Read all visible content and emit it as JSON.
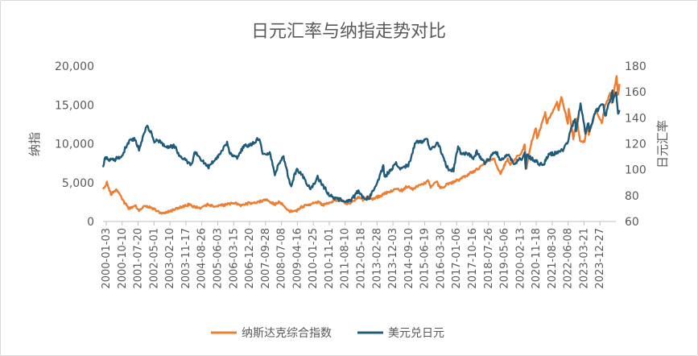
{
  "chart_data": {
    "type": "line",
    "title": "日元汇率与纳指走势对比",
    "ylabel_left": "纳指",
    "ylabel_right": "日元汇率",
    "y_left_ticks": [
      "20,000",
      "15,000",
      "10,000",
      "5,000",
      "0"
    ],
    "y_right_ticks": [
      "180",
      "160",
      "140",
      "120",
      "100",
      "80",
      "60"
    ],
    "y_left_range": [
      0,
      20000
    ],
    "y_right_range": [
      60,
      180
    ],
    "x_range": [
      "2000-01-03",
      "2024-06-28"
    ],
    "x_tick_labels": [
      "2000-01-03",
      "2000-10-10",
      "2001-07-20",
      "2002-05-01",
      "2003-02-10",
      "2003-11-17",
      "2004-08-26",
      "2005-06-03",
      "2006-03-15",
      "2006-12-20",
      "2007-09-28",
      "2008-07-08",
      "2009-04-16",
      "2010-01-25",
      "2010-11-01",
      "2011-08-10",
      "2012-05-18",
      "2013-02-28",
      "2013-12-03",
      "2014-09-10",
      "2015-06-19",
      "2016-03-30",
      "2017-01-06",
      "2017-10-16",
      "2018-07-26",
      "2019-05-06",
      "2020-02-13",
      "2020-11-18",
      "2021-08-30",
      "2022-06-08",
      "2023-03-21",
      "2023-12-27"
    ],
    "legend_position": "bottom",
    "grid": false,
    "series": [
      {
        "name": "纳斯达克综合指数",
        "axis": "left",
        "color": "#ED7D31",
        "points": [
          [
            "2000-01-03",
            4000
          ],
          [
            "2000-03-10",
            5000
          ],
          [
            "2000-05-20",
            3500
          ],
          [
            "2000-09-01",
            4200
          ],
          [
            "2000-12-29",
            2500
          ],
          [
            "2001-04-04",
            1650
          ],
          [
            "2001-07-15",
            2100
          ],
          [
            "2001-09-21",
            1420
          ],
          [
            "2002-01-04",
            2050
          ],
          [
            "2002-05-15",
            1700
          ],
          [
            "2002-10-09",
            1110
          ],
          [
            "2003-03-11",
            1280
          ],
          [
            "2003-07-01",
            1650
          ],
          [
            "2004-01-26",
            2150
          ],
          [
            "2004-08-12",
            1750
          ],
          [
            "2004-12-31",
            2180
          ],
          [
            "2005-04-28",
            1910
          ],
          [
            "2005-12-30",
            2205
          ],
          [
            "2006-04-19",
            2370
          ],
          [
            "2006-07-18",
            2020
          ],
          [
            "2007-01-03",
            2420
          ],
          [
            "2007-03-05",
            2340
          ],
          [
            "2007-10-31",
            2860
          ],
          [
            "2008-03-10",
            2170
          ],
          [
            "2008-06-05",
            2550
          ],
          [
            "2008-11-20",
            1316
          ],
          [
            "2009-03-09",
            1268
          ],
          [
            "2009-06-12",
            1850
          ],
          [
            "2009-12-31",
            2270
          ],
          [
            "2010-04-23",
            2530
          ],
          [
            "2010-07-02",
            2090
          ],
          [
            "2010-12-31",
            2650
          ],
          [
            "2011-04-29",
            2870
          ],
          [
            "2011-08-19",
            2340
          ],
          [
            "2011-10-03",
            2330
          ],
          [
            "2012-03-27",
            3120
          ],
          [
            "2012-06-01",
            2750
          ],
          [
            "2012-09-14",
            3180
          ],
          [
            "2012-11-15",
            2850
          ],
          [
            "2013-05-21",
            3500
          ],
          [
            "2013-12-31",
            4176
          ],
          [
            "2014-04-14",
            3990
          ],
          [
            "2014-07-03",
            4480
          ],
          [
            "2014-10-15",
            4210
          ],
          [
            "2015-07-20",
            5218
          ],
          [
            "2015-08-25",
            4500
          ],
          [
            "2015-12-01",
            5150
          ],
          [
            "2016-02-11",
            4266
          ],
          [
            "2016-07-01",
            4860
          ],
          [
            "2016-12-30",
            5383
          ],
          [
            "2017-06-30",
            6140
          ],
          [
            "2017-12-29",
            6903
          ],
          [
            "2018-03-13",
            7590
          ],
          [
            "2018-08-29",
            8110
          ],
          [
            "2018-12-24",
            6190
          ],
          [
            "2019-04-30",
            8095
          ],
          [
            "2019-06-03",
            7333
          ],
          [
            "2019-12-31",
            8972
          ],
          [
            "2020-02-19",
            9817
          ],
          [
            "2020-03-23",
            6860
          ],
          [
            "2020-06-10",
            10020
          ],
          [
            "2020-09-02",
            12056
          ],
          [
            "2020-09-23",
            10632
          ],
          [
            "2021-02-12",
            14095
          ],
          [
            "2021-03-08",
            12609
          ],
          [
            "2021-09-07",
            15374
          ],
          [
            "2021-10-04",
            14255
          ],
          [
            "2021-11-19",
            16057
          ],
          [
            "2022-03-14",
            12581
          ],
          [
            "2022-03-29",
            14619
          ],
          [
            "2022-06-16",
            10646
          ],
          [
            "2022-08-15",
            13128
          ],
          [
            "2022-10-13",
            10321
          ],
          [
            "2022-12-28",
            10213
          ],
          [
            "2023-02-02",
            12200
          ],
          [
            "2023-03-13",
            11188
          ],
          [
            "2023-07-19",
            14358
          ],
          [
            "2023-10-27",
            12643
          ],
          [
            "2023-12-28",
            15095
          ],
          [
            "2024-03-21",
            16400
          ],
          [
            "2024-04-19",
            15282
          ],
          [
            "2024-06-20",
            17850
          ],
          [
            "2024-07-10",
            18647
          ],
          [
            "2024-08-05",
            16200
          ],
          [
            "2024-08-30",
            17700
          ]
        ]
      },
      {
        "name": "美元兑日元",
        "axis": "right",
        "color": "#1F5B7A",
        "points": [
          [
            "2000-01-03",
            102
          ],
          [
            "2000-02-15",
            110
          ],
          [
            "2000-05-01",
            107
          ],
          [
            "2000-08-01",
            108
          ],
          [
            "2000-12-01",
            111
          ],
          [
            "2001-03-10",
            121
          ],
          [
            "2001-07-01",
            124
          ],
          [
            "2001-09-21",
            116
          ],
          [
            "2002-01-31",
            134
          ],
          [
            "2002-05-01",
            128
          ],
          [
            "2002-06-15",
            122
          ],
          [
            "2002-09-15",
            122
          ],
          [
            "2003-01-01",
            118
          ],
          [
            "2003-06-01",
            118
          ],
          [
            "2003-09-15",
            110
          ],
          [
            "2004-03-31",
            104
          ],
          [
            "2004-05-14",
            114
          ],
          [
            "2004-12-31",
            103
          ],
          [
            "2005-01-17",
            102
          ],
          [
            "2005-06-30",
            110
          ],
          [
            "2005-12-05",
            121
          ],
          [
            "2006-01-16",
            113
          ],
          [
            "2006-05-17",
            109
          ],
          [
            "2006-10-12",
            119
          ],
          [
            "2006-12-29",
            119
          ],
          [
            "2007-06-22",
            124
          ],
          [
            "2007-08-16",
            113
          ],
          [
            "2007-12-31",
            112
          ],
          [
            "2008-03-17",
            96
          ],
          [
            "2008-05-30",
            105
          ],
          [
            "2008-08-15",
            110
          ],
          [
            "2008-12-17",
            87
          ],
          [
            "2009-04-06",
            101
          ],
          [
            "2009-06-30",
            96
          ],
          [
            "2009-11-27",
            85
          ],
          [
            "2010-04-02",
            94
          ],
          [
            "2010-10-31",
            80
          ],
          [
            "2011-03-17",
            77
          ],
          [
            "2011-10-31",
            76
          ],
          [
            "2012-03-14",
            84
          ],
          [
            "2012-06-01",
            78
          ],
          [
            "2012-09-13",
            78
          ],
          [
            "2012-12-31",
            86
          ],
          [
            "2013-05-22",
            103
          ],
          [
            "2013-06-13",
            94
          ],
          [
            "2013-12-31",
            105
          ],
          [
            "2014-02-04",
            101
          ],
          [
            "2014-07-31",
            103
          ],
          [
            "2014-12-05",
            121
          ],
          [
            "2015-03-10",
            121
          ],
          [
            "2015-06-05",
            125
          ],
          [
            "2015-08-24",
            116
          ],
          [
            "2015-12-31",
            120
          ],
          [
            "2016-06-24",
            100
          ],
          [
            "2016-09-27",
            100
          ],
          [
            "2016-12-15",
            118
          ],
          [
            "2017-01-31",
            113
          ],
          [
            "2017-06-30",
            112
          ],
          [
            "2017-09-08",
            108
          ],
          [
            "2017-11-06",
            114
          ],
          [
            "2018-03-26",
            105
          ],
          [
            "2018-10-04",
            114
          ],
          [
            "2019-01-03",
            107
          ],
          [
            "2019-04-24",
            112
          ],
          [
            "2019-08-26",
            105
          ],
          [
            "2019-12-31",
            109
          ],
          [
            "2020-02-20",
            112
          ],
          [
            "2020-03-09",
            102
          ],
          [
            "2020-03-24",
            111
          ],
          [
            "2021-01-06",
            103
          ],
          [
            "2021-03-31",
            111
          ],
          [
            "2021-12-31",
            115
          ],
          [
            "2022-03-28",
            124
          ],
          [
            "2022-04-28",
            131
          ],
          [
            "2022-07-14",
            139
          ],
          [
            "2022-08-02",
            131
          ],
          [
            "2022-10-21",
            151
          ],
          [
            "2023-01-16",
            128
          ],
          [
            "2023-03-08",
            137
          ],
          [
            "2023-03-24",
            130
          ],
          [
            "2023-06-30",
            144
          ],
          [
            "2023-11-13",
            151
          ],
          [
            "2023-12-28",
            141
          ],
          [
            "2024-02-13",
            150
          ],
          [
            "2024-04-29",
            160
          ],
          [
            "2024-05-03",
            152
          ],
          [
            "2024-07-03",
            161
          ],
          [
            "2024-08-05",
            142
          ],
          [
            "2024-08-30",
            146
          ]
        ]
      }
    ]
  }
}
